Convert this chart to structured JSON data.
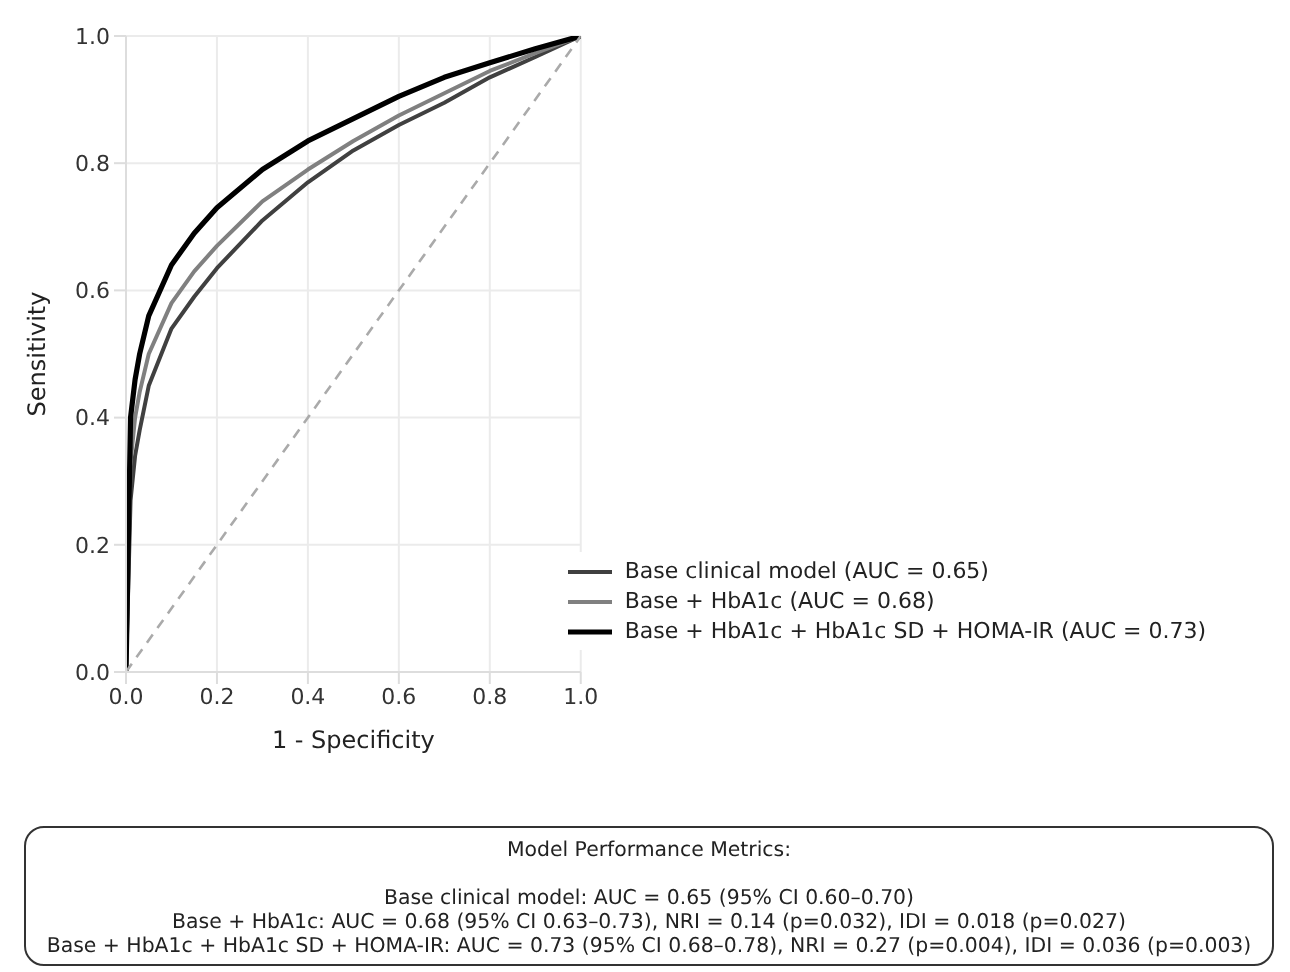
{
  "chart_data": {
    "type": "line",
    "xlabel": "1 - Specificity",
    "ylabel": "Sensitivity",
    "xlim": [
      0,
      1
    ],
    "ylim": [
      0,
      1
    ],
    "xticks": [
      {
        "value": 0,
        "label": "0.0"
      },
      {
        "value": 0.2,
        "label": "0.2"
      },
      {
        "value": 0.4,
        "label": "0.4"
      },
      {
        "value": 0.6,
        "label": "0.6"
      },
      {
        "value": 0.8,
        "label": "0.8"
      },
      {
        "value": 1,
        "label": "1.0"
      }
    ],
    "yticks": [
      {
        "value": 0,
        "label": "0.0"
      },
      {
        "value": 0.2,
        "label": "0.2"
      },
      {
        "value": 0.4,
        "label": "0.4"
      },
      {
        "value": 0.6,
        "label": "0.6"
      },
      {
        "value": 0.8,
        "label": "0.8"
      },
      {
        "value": 1,
        "label": "1.0"
      }
    ],
    "grid": true,
    "legend": "bottom right",
    "line_style": "solid",
    "marker": "none",
    "series": [
      {
        "name": "Base clinical model (AUC = 0.65)",
        "color": "#404040",
        "x": [
          0,
          0.01,
          0.02,
          0.03,
          0.05,
          0.1,
          0.15,
          0.2,
          0.3,
          0.4,
          0.5,
          0.6,
          0.7,
          0.8,
          0.9,
          1
        ],
        "values": [
          0,
          0.27,
          0.34,
          0.38,
          0.45,
          0.54,
          0.59,
          0.635,
          0.71,
          0.77,
          0.82,
          0.86,
          0.895,
          0.935,
          0.967,
          1
        ]
      },
      {
        "name": "Base + HbA1c (AUC = 0.68)",
        "color": "#808080",
        "x": [
          0,
          0.01,
          0.02,
          0.03,
          0.05,
          0.1,
          0.15,
          0.2,
          0.3,
          0.4,
          0.5,
          0.6,
          0.7,
          0.8,
          0.9,
          1
        ],
        "values": [
          0,
          0.33,
          0.4,
          0.44,
          0.5,
          0.58,
          0.63,
          0.67,
          0.74,
          0.79,
          0.835,
          0.875,
          0.91,
          0.945,
          0.973,
          1
        ]
      },
      {
        "name": "Base + HbA1c + HbA1c SD + HOMA-IR (AUC = 0.73)",
        "color": "#000000",
        "x": [
          0,
          0.01,
          0.02,
          0.03,
          0.05,
          0.1,
          0.15,
          0.2,
          0.3,
          0.4,
          0.5,
          0.6,
          0.7,
          0.8,
          0.9,
          1
        ],
        "values": [
          0,
          0.4,
          0.46,
          0.5,
          0.56,
          0.64,
          0.69,
          0.73,
          0.79,
          0.835,
          0.87,
          0.905,
          0.935,
          0.958,
          0.98,
          1
        ]
      },
      {
        "type": "line",
        "line_style": "dashed",
        "color": "#aaaaaa",
        "x": [
          0,
          1
        ],
        "values": [
          0,
          1
        ]
      }
    ],
    "annotations": [
      "Model Performance Metrics:",
      "Base clinical model: AUC = 0.65 (95% CI 0.60–0.70)",
      "Base + HbA1c: AUC = 0.68 (95% CI 0.63–0.73), NRI = 0.14 (p=0.032), IDI = 0.018 (p=0.027)",
      "Base + HbA1c + HbA1c SD + HOMA-IR: AUC = 0.73 (95% CI 0.68–0.78), NRI = 0.27 (p=0.004), IDI = 0.036 (p=0.003)"
    ]
  }
}
